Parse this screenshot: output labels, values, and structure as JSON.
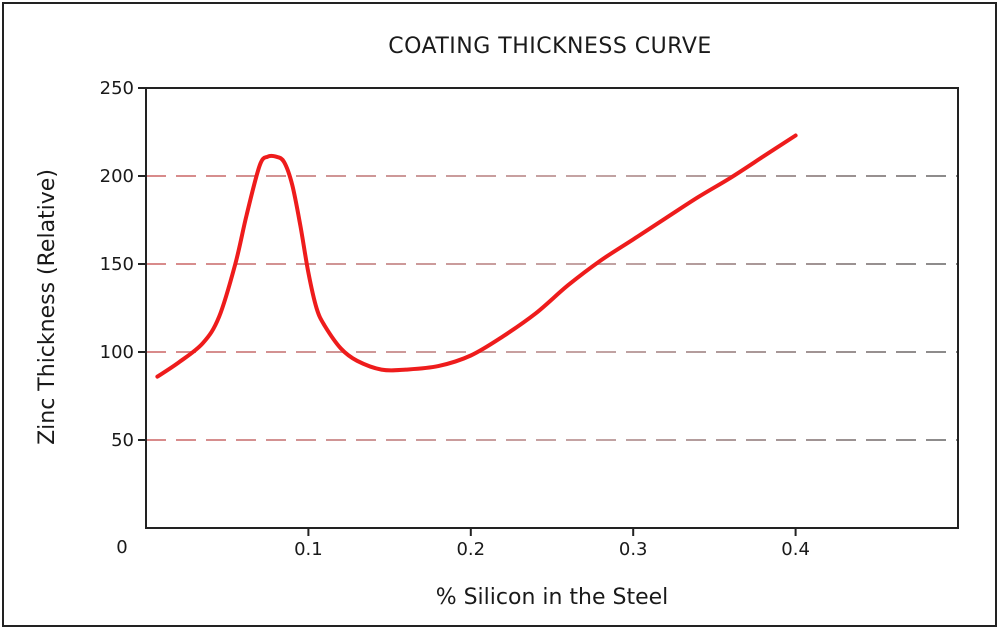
{
  "chart_data": {
    "type": "line",
    "title": "COATING THICKNESS CURVE",
    "xlabel": "% Silicon in the Steel",
    "ylabel": "Zinc Thickness  (Relative)",
    "xlim": [
      0,
      0.5
    ],
    "ylim": [
      0,
      250
    ],
    "origin_label": "0",
    "x_ticks": [
      {
        "value": 0.1,
        "label": "0.1"
      },
      {
        "value": 0.2,
        "label": "0.2"
      },
      {
        "value": 0.3,
        "label": "0.3"
      },
      {
        "value": 0.4,
        "label": "0.4"
      }
    ],
    "y_ticks": [
      {
        "value": 50,
        "label": "50"
      },
      {
        "value": 100,
        "label": "100"
      },
      {
        "value": 150,
        "label": "150"
      },
      {
        "value": 200,
        "label": "200"
      },
      {
        "value": 250,
        "label": "250"
      }
    ],
    "gridlines": [
      50,
      100,
      150,
      200
    ],
    "grid": "dashed horizontal",
    "colors": {
      "series": "#ee1c1c",
      "grid_left": "#d98a8a",
      "grid_right": "#8a8a8a",
      "axis": "#222222"
    },
    "series": [
      {
        "x": [
          0.007,
          0.02,
          0.035,
          0.045,
          0.055,
          0.062,
          0.07,
          0.075,
          0.08,
          0.085,
          0.09,
          0.095,
          0.1,
          0.105,
          0.11,
          0.12,
          0.13,
          0.145,
          0.16,
          0.18,
          0.2,
          0.22,
          0.24,
          0.26,
          0.28,
          0.3,
          0.32,
          0.34,
          0.36,
          0.38,
          0.4
        ],
        "values": [
          86,
          94,
          105,
          120,
          150,
          178,
          206,
          211,
          211,
          208,
          195,
          172,
          145,
          125,
          115,
          102,
          95,
          90,
          90,
          92,
          98,
          109,
          122,
          138,
          152,
          164,
          176,
          188,
          199,
          211,
          223
        ]
      }
    ]
  }
}
